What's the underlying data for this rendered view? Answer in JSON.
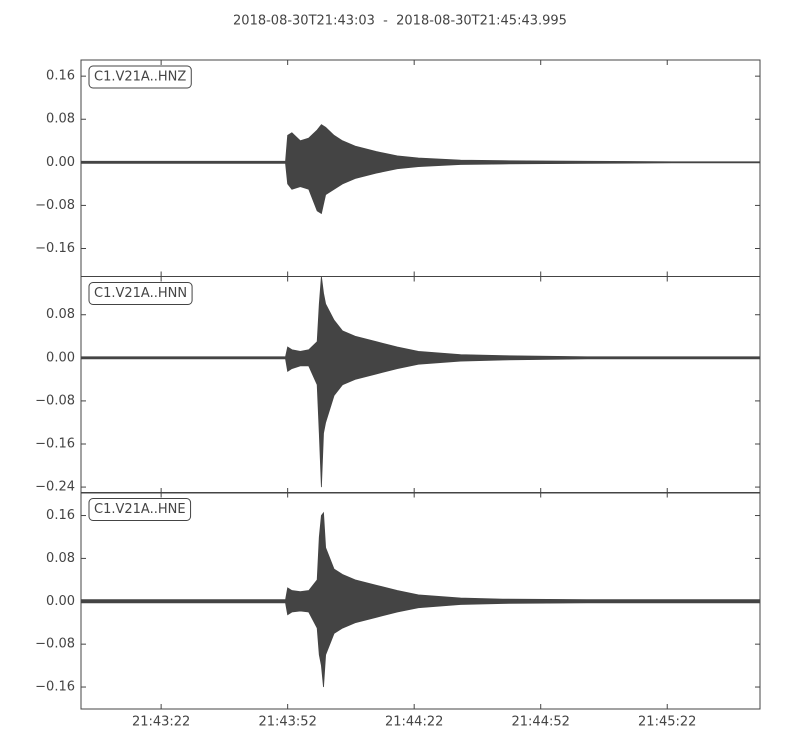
{
  "chart_data": [
    {
      "type": "waveform",
      "title": "2018-08-30T21:43:03  -  2018-08-30T21:45:43.995",
      "label": "C1.V21A..HNZ",
      "x": [
        0,
        48.5,
        49,
        50,
        52,
        54,
        56,
        57,
        58,
        60,
        62,
        65,
        70,
        75,
        80,
        90,
        100,
        120,
        140,
        161
      ],
      "series": [
        {
          "color": "#444444",
          "values": [
            0.002,
            0.002,
            0.05,
            0.055,
            0.04,
            0.045,
            0.06,
            0.07,
            0.065,
            0.05,
            0.04,
            0.03,
            0.02,
            0.012,
            0.008,
            0.004,
            0.003,
            0.002,
            0.001,
            0.001
          ]
        },
        {
          "color": "#444444",
          "values": [
            -0.002,
            -0.002,
            -0.04,
            -0.05,
            -0.045,
            -0.05,
            -0.09,
            -0.095,
            -0.06,
            -0.05,
            -0.04,
            -0.03,
            -0.02,
            -0.012,
            -0.008,
            -0.004,
            -0.003,
            -0.002,
            -0.001,
            -0.001
          ]
        }
      ],
      "xlim": [
        0,
        160.995
      ],
      "ylim": [
        -0.212,
        0.19
      ],
      "yticks": [
        {
          "value": -0.16,
          "label": "−0.16"
        },
        {
          "value": -0.08,
          "label": "−0.08"
        },
        {
          "value": 0,
          "label": "0.00"
        },
        {
          "value": 0.08,
          "label": "0.08"
        },
        {
          "value": 0.16,
          "label": "0.16"
        }
      ]
    },
    {
      "type": "waveform",
      "label": "C1.V21A..HNN",
      "x": [
        0,
        48.5,
        49,
        50,
        52,
        54,
        56,
        56.5,
        57,
        57.5,
        58,
        60,
        62,
        65,
        70,
        75,
        80,
        90,
        100,
        120,
        140,
        161
      ],
      "series": [
        {
          "color": "#444444",
          "values": [
            0.002,
            0.002,
            0.02,
            0.015,
            0.012,
            0.015,
            0.03,
            0.1,
            0.151,
            0.12,
            0.1,
            0.07,
            0.05,
            0.04,
            0.03,
            0.02,
            0.012,
            0.006,
            0.004,
            0.002,
            0.002,
            0.002
          ]
        },
        {
          "color": "#444444",
          "values": [
            -0.002,
            -0.002,
            -0.025,
            -0.02,
            -0.015,
            -0.015,
            -0.05,
            -0.14,
            -0.24,
            -0.14,
            -0.12,
            -0.07,
            -0.05,
            -0.04,
            -0.03,
            -0.02,
            -0.012,
            -0.006,
            -0.004,
            -0.002,
            -0.002,
            -0.002
          ]
        }
      ],
      "xlim": [
        0,
        160.995
      ],
      "ylim": [
        -0.251,
        0.151
      ],
      "yticks": [
        {
          "value": -0.24,
          "label": "−0.24"
        },
        {
          "value": -0.16,
          "label": "−0.16"
        },
        {
          "value": -0.08,
          "label": "−0.08"
        },
        {
          "value": 0,
          "label": "0.00"
        },
        {
          "value": 0.08,
          "label": "0.08"
        }
      ]
    },
    {
      "type": "waveform",
      "label": "C1.V21A..HNE",
      "x": [
        0,
        48.5,
        49,
        50,
        52,
        54,
        56,
        56.5,
        57,
        57.5,
        58,
        60,
        62,
        65,
        70,
        75,
        80,
        90,
        100,
        120,
        140,
        161
      ],
      "series": [
        {
          "color": "#444444",
          "values": [
            0.003,
            0.003,
            0.025,
            0.02,
            0.018,
            0.02,
            0.04,
            0.12,
            0.16,
            0.165,
            0.1,
            0.06,
            0.05,
            0.04,
            0.03,
            0.02,
            0.012,
            0.006,
            0.004,
            0.003,
            0.003,
            0.003
          ]
        },
        {
          "color": "#444444",
          "values": [
            -0.003,
            -0.003,
            -0.025,
            -0.02,
            -0.018,
            -0.02,
            -0.05,
            -0.1,
            -0.12,
            -0.16,
            -0.1,
            -0.06,
            -0.05,
            -0.04,
            -0.03,
            -0.02,
            -0.012,
            -0.006,
            -0.004,
            -0.003,
            -0.003,
            -0.003
          ]
        }
      ],
      "xlim": [
        0,
        160.995
      ],
      "ylim": [
        -0.201,
        0.203
      ],
      "yticks": [
        {
          "value": -0.16,
          "label": "−0.16"
        },
        {
          "value": -0.08,
          "label": "−0.08"
        },
        {
          "value": 0,
          "label": "0.00"
        },
        {
          "value": 0.08,
          "label": "0.08"
        },
        {
          "value": 0.16,
          "label": "0.16"
        }
      ],
      "xticks": [
        {
          "value": 19,
          "label": "21:43:22"
        },
        {
          "value": 49,
          "label": "21:43:52"
        },
        {
          "value": 79,
          "label": "21:44:22"
        },
        {
          "value": 109,
          "label": "21:44:52"
        },
        {
          "value": 139,
          "label": "21:45:22"
        }
      ]
    }
  ]
}
